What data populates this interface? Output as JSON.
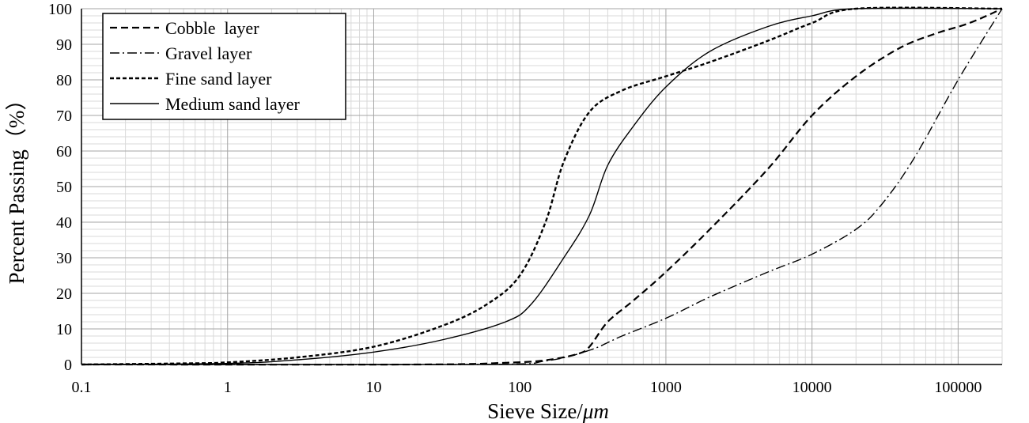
{
  "chart_data": {
    "type": "line",
    "title": "",
    "xlabel": "Sieve Size/",
    "xlabel_unit": "μm",
    "ylabel": "Percent Passing（%）",
    "x_scale": "log",
    "xlim": [
      0.1,
      200000
    ],
    "ylim": [
      0,
      100
    ],
    "x_ticks": [
      0.1,
      1,
      10,
      100,
      1000,
      10000,
      100000
    ],
    "x_tick_labels": [
      "0.1",
      "1",
      "10",
      "100",
      "1000",
      "10000",
      "100000"
    ],
    "y_ticks": [
      0,
      10,
      20,
      30,
      40,
      50,
      60,
      70,
      80,
      90,
      100
    ],
    "y_tick_labels": [
      "0",
      "10",
      "20",
      "30",
      "40",
      "50",
      "60",
      "70",
      "80",
      "90",
      "100"
    ],
    "grid": true,
    "legend_position": "top-left",
    "series": [
      {
        "name": "Cobble  layer",
        "line_style": "dashed",
        "color": "#000000",
        "points": [
          [
            0.1,
            0
          ],
          [
            20,
            0
          ],
          [
            80,
            0.5
          ],
          [
            150,
            1.2
          ],
          [
            250,
            3
          ],
          [
            300,
            5
          ],
          [
            400,
            12
          ],
          [
            600,
            18
          ],
          [
            1000,
            26
          ],
          [
            2000,
            38
          ],
          [
            5000,
            55
          ],
          [
            10000,
            70
          ],
          [
            20000,
            81
          ],
          [
            40000,
            89
          ],
          [
            70000,
            93
          ],
          [
            120000,
            96
          ],
          [
            200000,
            100
          ]
        ]
      },
      {
        "name": "Gravel layer",
        "line_style": "dash-dot",
        "color": "#000000",
        "points": [
          [
            0.1,
            0
          ],
          [
            50,
            0
          ],
          [
            150,
            1
          ],
          [
            300,
            4
          ],
          [
            500,
            8
          ],
          [
            1000,
            13
          ],
          [
            2000,
            19
          ],
          [
            5000,
            26
          ],
          [
            10000,
            31
          ],
          [
            20000,
            38
          ],
          [
            30000,
            45
          ],
          [
            50000,
            58
          ],
          [
            100000,
            80
          ],
          [
            200000,
            100
          ]
        ]
      },
      {
        "name": "Fine sand layer",
        "line_style": "short-dashed",
        "color": "#000000",
        "points": [
          [
            0.1,
            0
          ],
          [
            0.5,
            0.3
          ],
          [
            1,
            0.6
          ],
          [
            3,
            2
          ],
          [
            10,
            5
          ],
          [
            30,
            11
          ],
          [
            60,
            17
          ],
          [
            100,
            25
          ],
          [
            150,
            40
          ],
          [
            200,
            57
          ],
          [
            300,
            71
          ],
          [
            500,
            77
          ],
          [
            1000,
            81
          ],
          [
            2000,
            85
          ],
          [
            5000,
            91
          ],
          [
            10000,
            96
          ],
          [
            20000,
            100
          ],
          [
            200000,
            100
          ]
        ]
      },
      {
        "name": "Medium sand layer",
        "line_style": "solid",
        "color": "#000000",
        "points": [
          [
            0.1,
            0
          ],
          [
            1,
            0.3
          ],
          [
            3,
            1.3
          ],
          [
            10,
            3.5
          ],
          [
            30,
            7
          ],
          [
            80,
            12
          ],
          [
            120,
            17
          ],
          [
            200,
            30
          ],
          [
            300,
            42
          ],
          [
            400,
            56
          ],
          [
            600,
            67
          ],
          [
            1000,
            78
          ],
          [
            2000,
            88
          ],
          [
            5000,
            95
          ],
          [
            10000,
            98
          ],
          [
            20000,
            100
          ],
          [
            200000,
            100
          ]
        ]
      }
    ]
  }
}
